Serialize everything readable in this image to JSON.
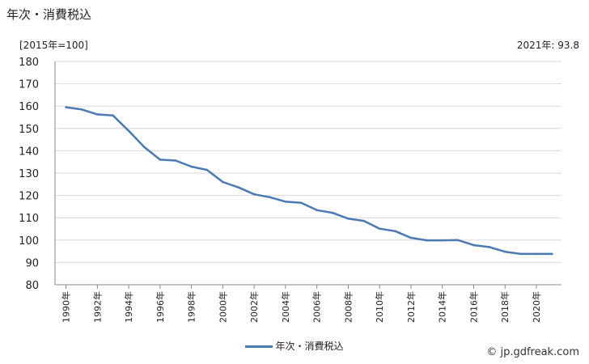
{
  "header": {
    "title": "年次・消費税込",
    "unit": "[2015年=100]",
    "latest": "2021年: 93.8"
  },
  "legend": {
    "label": "年次・消費税込"
  },
  "credit": {
    "text": "© jp.gdfreak.com"
  },
  "colors": {
    "series": "#4a7ab5",
    "grid": "#d9d9d9",
    "axis": "#888888"
  },
  "chart_data": {
    "type": "line",
    "x": [
      1990,
      1991,
      1992,
      1993,
      1994,
      1995,
      1996,
      1997,
      1998,
      1999,
      2000,
      2001,
      2002,
      2003,
      2004,
      2005,
      2006,
      2007,
      2008,
      2009,
      2010,
      2011,
      2012,
      2013,
      2014,
      2015,
      2016,
      2017,
      2018,
      2019,
      2020,
      2021
    ],
    "xticks": [
      "1990年",
      "1992年",
      "1994年",
      "1996年",
      "1998年",
      "2000年",
      "2002年",
      "2004年",
      "2006年",
      "2008年",
      "2010年",
      "2012年",
      "2014年",
      "2016年",
      "2018年",
      "2020年"
    ],
    "yticks": [
      "80",
      "90",
      "100",
      "110",
      "120",
      "130",
      "140",
      "150",
      "160",
      "170",
      "180"
    ],
    "ylim": [
      80,
      180
    ],
    "series": [
      {
        "name": "年次・消費税込",
        "values": [
          159.5,
          158.5,
          156.3,
          155.8,
          148.9,
          141.6,
          136.0,
          135.6,
          132.9,
          131.4,
          126.0,
          123.6,
          120.5,
          119.2,
          117.2,
          116.7,
          113.4,
          112.2,
          109.6,
          108.6,
          105.1,
          104.0,
          101.0,
          99.9,
          99.9,
          100.0,
          97.7,
          96.9,
          94.8,
          93.8,
          93.8,
          93.8
        ]
      }
    ]
  }
}
